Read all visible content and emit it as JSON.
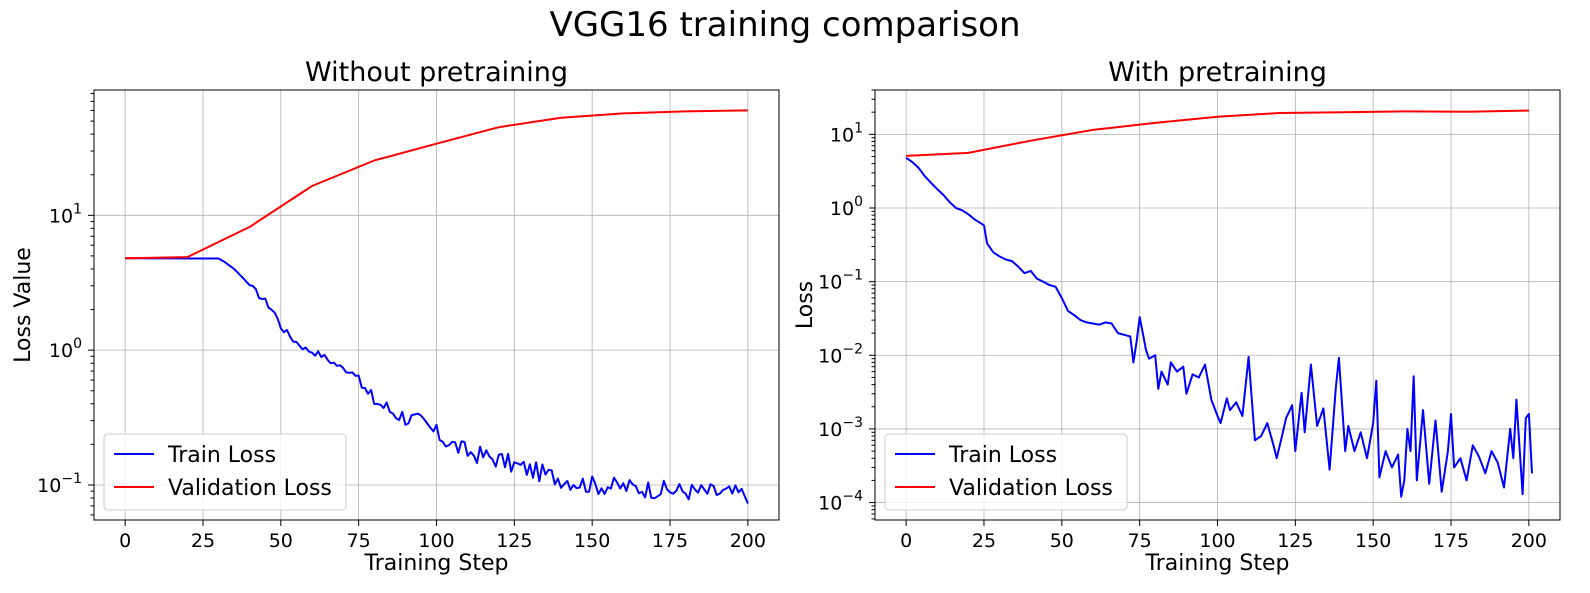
{
  "figure": {
    "title": "VGG16 training comparison"
  },
  "chart_data": [
    {
      "type": "line",
      "title": "Without pretraining",
      "xlabel": "Training Step",
      "ylabel": "Loss Value",
      "xlim": [
        -10,
        210
      ],
      "ylim": [
        0.055,
        85
      ],
      "yscale": "log",
      "xticks": [
        0,
        25,
        50,
        75,
        100,
        125,
        150,
        175,
        200
      ],
      "yticks": [
        {
          "value": 0.1,
          "base": "10",
          "exp": "−1"
        },
        {
          "value": 1,
          "base": "10",
          "exp": "0"
        },
        {
          "value": 10,
          "base": "10",
          "exp": "1"
        }
      ],
      "grid": true,
      "legend": "lower-left",
      "series": [
        {
          "name": "Train Loss",
          "color": "#0000ff",
          "noise": [
            [
              0,
              4.8
            ],
            [
              30,
              4.78
            ],
            [
              32,
              4.5
            ],
            [
              35,
              4.0
            ],
            [
              38,
              3.4
            ],
            [
              42,
              2.7
            ],
            [
              45,
              2.3
            ],
            [
              48,
              1.9
            ],
            [
              50,
              1.5
            ],
            [
              54,
              1.2
            ],
            [
              58,
              1.02
            ],
            [
              60,
              0.98
            ],
            [
              63,
              0.92
            ],
            [
              66,
              0.83
            ],
            [
              70,
              0.73
            ],
            [
              74,
              0.68
            ],
            [
              76,
              0.55
            ],
            [
              78,
              0.46
            ],
            [
              82,
              0.4
            ],
            [
              85,
              0.36
            ],
            [
              90,
              0.32
            ],
            [
              95,
              0.29
            ],
            [
              100,
              0.24
            ],
            [
              105,
              0.2
            ],
            [
              110,
              0.175
            ],
            [
              115,
              0.165
            ],
            [
              120,
              0.155
            ],
            [
              125,
              0.14
            ],
            [
              130,
              0.13
            ],
            [
              135,
              0.12
            ],
            [
              140,
              0.112
            ],
            [
              145,
              0.105
            ],
            [
              150,
              0.1
            ],
            [
              160,
              0.097
            ],
            [
              170,
              0.093
            ],
            [
              180,
              0.09
            ],
            [
              190,
              0.088
            ],
            [
              200,
              0.085
            ]
          ]
        },
        {
          "name": "Validation Loss",
          "color": "#ff0000",
          "x": [
            0,
            20,
            40,
            60,
            80,
            100,
            120,
            140,
            160,
            180,
            200
          ],
          "y": [
            4.8,
            4.9,
            8.2,
            16.5,
            25.5,
            34.0,
            45.0,
            53.0,
            57.0,
            59.0,
            60.0
          ]
        }
      ]
    },
    {
      "type": "line",
      "title": "With pretraining",
      "xlabel": "Training Step",
      "ylabel": "Loss",
      "xlim": [
        -10,
        210
      ],
      "ylim": [
        5.8e-05,
        40
      ],
      "yscale": "log",
      "xticks": [
        0,
        25,
        50,
        75,
        100,
        125,
        150,
        175,
        200
      ],
      "yticks": [
        {
          "value": 0.0001,
          "base": "10",
          "exp": "−4"
        },
        {
          "value": 0.001,
          "base": "10",
          "exp": "−3"
        },
        {
          "value": 0.01,
          "base": "10",
          "exp": "−2"
        },
        {
          "value": 0.1,
          "base": "10",
          "exp": "−1"
        },
        {
          "value": 1,
          "base": "10",
          "exp": "0"
        },
        {
          "value": 10,
          "base": "10",
          "exp": "1"
        }
      ],
      "grid": true,
      "legend": "lower-left",
      "series": [
        {
          "name": "Train Loss",
          "color": "#0000ff",
          "points": [
            [
              0,
              4.8
            ],
            [
              2,
              4.2
            ],
            [
              4,
              3.5
            ],
            [
              6,
              2.7
            ],
            [
              8,
              2.2
            ],
            [
              10,
              1.8
            ],
            [
              12,
              1.5
            ],
            [
              14,
              1.2
            ],
            [
              16,
              1.0
            ],
            [
              18,
              0.93
            ],
            [
              20,
              0.82
            ],
            [
              22,
              0.7
            ],
            [
              24,
              0.62
            ],
            [
              25,
              0.58
            ],
            [
              26,
              0.33
            ],
            [
              28,
              0.25
            ],
            [
              30,
              0.22
            ],
            [
              32,
              0.2
            ],
            [
              34,
              0.19
            ],
            [
              36,
              0.16
            ],
            [
              38,
              0.13
            ],
            [
              40,
              0.14
            ],
            [
              42,
              0.11
            ],
            [
              44,
              0.1
            ],
            [
              46,
              0.09
            ],
            [
              48,
              0.085
            ],
            [
              50,
              0.06
            ],
            [
              52,
              0.04
            ],
            [
              54,
              0.035
            ],
            [
              56,
              0.03
            ],
            [
              58,
              0.028
            ],
            [
              60,
              0.027
            ],
            [
              62,
              0.026
            ],
            [
              64,
              0.028
            ],
            [
              66,
              0.027
            ],
            [
              68,
              0.02
            ],
            [
              70,
              0.019
            ],
            [
              72,
              0.018
            ],
            [
              73,
              0.008
            ],
            [
              74,
              0.015
            ],
            [
              75,
              0.033
            ],
            [
              77,
              0.012
            ],
            [
              78,
              0.009
            ],
            [
              80,
              0.01
            ],
            [
              81,
              0.0035
            ],
            [
              82,
              0.006
            ],
            [
              84,
              0.004
            ],
            [
              85,
              0.008
            ],
            [
              87,
              0.006
            ],
            [
              89,
              0.007
            ],
            [
              90,
              0.003
            ],
            [
              92,
              0.0055
            ],
            [
              94,
              0.005
            ],
            [
              96,
              0.0075
            ],
            [
              98,
              0.0025
            ],
            [
              100,
              0.0015
            ],
            [
              101,
              0.0012
            ],
            [
              103,
              0.0026
            ],
            [
              104,
              0.0018
            ],
            [
              106,
              0.0023
            ],
            [
              108,
              0.0015
            ],
            [
              110,
              0.0095
            ],
            [
              112,
              0.0007
            ],
            [
              114,
              0.0008
            ],
            [
              116,
              0.0012
            ],
            [
              118,
              0.0006
            ],
            [
              119,
              0.0004
            ],
            [
              121,
              0.0009
            ],
            [
              122,
              0.0014
            ],
            [
              124,
              0.0021
            ],
            [
              125,
              0.0005
            ],
            [
              127,
              0.0031
            ],
            [
              128,
              0.0009
            ],
            [
              130,
              0.0075
            ],
            [
              132,
              0.0011
            ],
            [
              134,
              0.0019
            ],
            [
              136,
              0.00028
            ],
            [
              138,
              0.0036
            ],
            [
              139,
              0.0092
            ],
            [
              141,
              0.0005
            ],
            [
              142,
              0.0011
            ],
            [
              144,
              0.0005
            ],
            [
              146,
              0.0009
            ],
            [
              148,
              0.0004
            ],
            [
              150,
              0.0012
            ],
            [
              151,
              0.0045
            ],
            [
              152,
              0.00022
            ],
            [
              154,
              0.0005
            ],
            [
              156,
              0.0003
            ],
            [
              158,
              0.00045
            ],
            [
              159,
              0.00012
            ],
            [
              160,
              0.0002
            ],
            [
              161,
              0.001
            ],
            [
              162,
              0.0005
            ],
            [
              163,
              0.0052
            ],
            [
              164,
              0.0002
            ],
            [
              166,
              0.0018
            ],
            [
              168,
              0.00018
            ],
            [
              170,
              0.0013
            ],
            [
              172,
              0.00014
            ],
            [
              174,
              0.0005
            ],
            [
              175,
              0.0016
            ],
            [
              176,
              0.0003
            ],
            [
              178,
              0.0004
            ],
            [
              180,
              0.0002
            ],
            [
              182,
              0.0006
            ],
            [
              184,
              0.00042
            ],
            [
              186,
              0.00025
            ],
            [
              188,
              0.0005
            ],
            [
              190,
              0.00035
            ],
            [
              192,
              0.00016
            ],
            [
              194,
              0.001
            ],
            [
              195,
              0.0004
            ],
            [
              196,
              0.0025
            ],
            [
              198,
              0.00013
            ],
            [
              199,
              0.0014
            ],
            [
              200,
              0.0016
            ],
            [
              201,
              0.00025
            ]
          ]
        },
        {
          "name": "Validation Loss",
          "color": "#ff0000",
          "x": [
            0,
            20,
            40,
            60,
            80,
            100,
            120,
            140,
            160,
            180,
            200
          ],
          "y": [
            5.1,
            5.6,
            8.2,
            11.5,
            14.3,
            17.3,
            19.5,
            20.0,
            20.5,
            20.3,
            21.0
          ]
        }
      ]
    }
  ]
}
